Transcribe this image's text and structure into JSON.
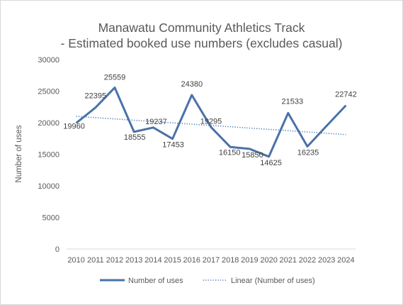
{
  "chart_data": {
    "type": "line",
    "title_line1": "Manawatu Community Athletics Track",
    "title_line2": "- Estimated booked use numbers (excludes casual)",
    "xlabel": "",
    "ylabel": "Number  of uses",
    "categories": [
      "2010",
      "2011",
      "2012",
      "2013",
      "2014",
      "2015",
      "2016",
      "2017",
      "2018",
      "2019",
      "2020",
      "2021",
      "2022",
      "2023",
      "2024"
    ],
    "series": [
      {
        "name": "Number of uses",
        "color": "#4a72a8",
        "values": [
          19960,
          22395,
          25559,
          18555,
          19237,
          17453,
          24380,
          19295,
          16150,
          15850,
          14625,
          21533,
          16235,
          19500,
          22742
        ],
        "labels": [
          "19960",
          "22395",
          "25559",
          "18555",
          "19237",
          "17453",
          "24380",
          "19295",
          "16150",
          "15850",
          "14625",
          "21533",
          "16235",
          "",
          "22742"
        ]
      }
    ],
    "trendline": {
      "name": "Linear (Number of uses)",
      "color": "#4a7ebb",
      "style": "dotted",
      "type": "linear"
    },
    "ylim": [
      0,
      30000
    ],
    "yticks": [
      0,
      5000,
      10000,
      15000,
      20000,
      25000,
      30000
    ],
    "ytick_labels": [
      "0",
      "5000",
      "10000",
      "15000",
      "20000",
      "25000",
      "30000"
    ],
    "grid": false,
    "legend_position": "bottom"
  }
}
